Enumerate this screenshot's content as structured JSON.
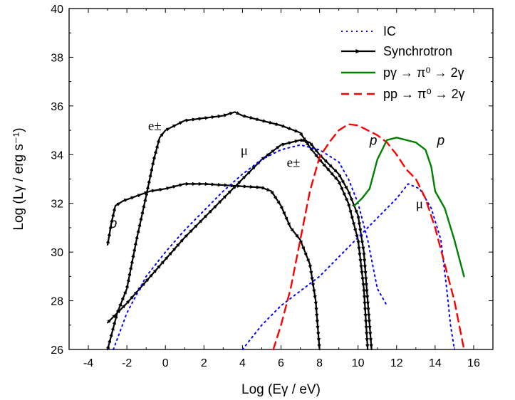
{
  "chart_data": {
    "type": "line",
    "xlabel": "Log (Eγ / eV)",
    "ylabel": "Log (Lγ / erg s⁻¹)",
    "xlim": [
      -5,
      17
    ],
    "ylim": [
      26,
      40
    ],
    "xticks": [
      -4,
      -2,
      0,
      2,
      4,
      6,
      8,
      10,
      12,
      14,
      16
    ],
    "yticks": [
      26,
      28,
      30,
      32,
      34,
      36,
      38,
      40
    ],
    "legend": {
      "placement": "top-right",
      "entries": [
        {
          "label": "IC",
          "color": "#0000ff",
          "style": "dotted"
        },
        {
          "label": "Synchrotron",
          "color": "#000000",
          "style": "solid-arrow"
        },
        {
          "label": "pγ → π⁰ → 2γ",
          "color": "#008000",
          "style": "solid"
        },
        {
          "label": "pp → π⁰ → 2γ",
          "color": "#ff0000",
          "style": "dashed"
        }
      ]
    },
    "annotations": [
      {
        "text": "e±",
        "x": -0.9,
        "y": 35.0
      },
      {
        "text": "μ",
        "x": 3.9,
        "y": 34.0
      },
      {
        "text": "e±",
        "x": 6.3,
        "y": 33.5
      },
      {
        "text": "p",
        "x": -2.9,
        "y": 31.0
      },
      {
        "text": "p",
        "x": 10.6,
        "y": 34.4
      },
      {
        "text": "p",
        "x": 14.1,
        "y": 34.4
      },
      {
        "text": "μ",
        "x": 13.0,
        "y": 31.8
      }
    ],
    "series": [
      {
        "style": "sync",
        "color": "#000000",
        "points": [
          [
            -3.0,
            30.3
          ],
          [
            -2.8,
            31.2
          ],
          [
            -2.6,
            31.9
          ],
          [
            -2.2,
            32.1
          ],
          [
            -1.5,
            32.3
          ],
          [
            -0.8,
            32.5
          ],
          [
            0.0,
            32.6
          ],
          [
            1.0,
            32.8
          ],
          [
            2.0,
            32.8
          ],
          [
            3.0,
            32.75
          ],
          [
            4.0,
            32.7
          ],
          [
            5.0,
            32.65
          ],
          [
            5.5,
            32.5
          ],
          [
            6.0,
            31.9
          ],
          [
            6.5,
            31.0
          ],
          [
            7.0,
            30.5
          ],
          [
            7.5,
            29.5
          ],
          [
            7.8,
            28.0
          ],
          [
            8.0,
            26.0
          ]
        ]
      },
      {
        "style": "sync",
        "color": "#000000",
        "points": [
          [
            -3.0,
            26.0
          ],
          [
            -2.5,
            27.5
          ],
          [
            -2.0,
            28.5
          ],
          [
            -1.5,
            30.5
          ],
          [
            -1.0,
            32.3
          ],
          [
            -0.6,
            33.8
          ],
          [
            -0.3,
            34.7
          ],
          [
            0.0,
            35.0
          ],
          [
            1.0,
            35.4
          ],
          [
            2.0,
            35.5
          ],
          [
            3.0,
            35.6
          ],
          [
            3.6,
            35.75
          ],
          [
            4.0,
            35.6
          ],
          [
            5.0,
            35.4
          ],
          [
            6.0,
            35.2
          ],
          [
            7.0,
            34.9
          ],
          [
            7.5,
            34.3
          ],
          [
            8.0,
            33.8
          ],
          [
            9.0,
            32.9
          ],
          [
            9.5,
            32.0
          ],
          [
            10.0,
            30.5
          ],
          [
            10.3,
            28.5
          ],
          [
            10.5,
            26.0
          ]
        ]
      },
      {
        "style": "sync",
        "color": "#000000",
        "points": [
          [
            -3.0,
            27.1
          ],
          [
            -2.5,
            27.5
          ],
          [
            -2.0,
            27.9
          ],
          [
            -1.0,
            28.8
          ],
          [
            0.0,
            29.7
          ],
          [
            1.0,
            30.6
          ],
          [
            2.0,
            31.4
          ],
          [
            3.0,
            32.2
          ],
          [
            4.0,
            33.0
          ],
          [
            5.0,
            33.8
          ],
          [
            6.0,
            34.4
          ],
          [
            7.0,
            34.6
          ],
          [
            7.5,
            34.5
          ],
          [
            8.0,
            34.0
          ],
          [
            8.5,
            33.6
          ],
          [
            9.0,
            33.2
          ],
          [
            9.5,
            32.5
          ],
          [
            10.0,
            31.5
          ],
          [
            10.3,
            30.0
          ],
          [
            10.5,
            28.0
          ],
          [
            10.7,
            26.0
          ]
        ]
      },
      {
        "style": "ic",
        "color": "#0000ff",
        "points": [
          [
            -2.7,
            26.0
          ],
          [
            -2.0,
            27.5
          ],
          [
            -1.0,
            29.0
          ],
          [
            0.0,
            30.0
          ],
          [
            1.0,
            30.9
          ],
          [
            2.0,
            31.7
          ],
          [
            3.0,
            32.5
          ],
          [
            4.0,
            33.2
          ],
          [
            5.0,
            33.8
          ],
          [
            6.0,
            34.2
          ],
          [
            7.0,
            34.4
          ],
          [
            8.0,
            34.2
          ],
          [
            9.0,
            33.7
          ],
          [
            9.5,
            33.0
          ],
          [
            10.0,
            32.0
          ],
          [
            10.5,
            30.5
          ],
          [
            11.0,
            28.5
          ],
          [
            11.5,
            27.8
          ]
        ]
      },
      {
        "style": "ic",
        "color": "#0000ff",
        "points": [
          [
            4.0,
            26.0
          ],
          [
            5.0,
            27.0
          ],
          [
            6.0,
            27.8
          ],
          [
            7.0,
            28.4
          ],
          [
            8.0,
            29.0
          ],
          [
            9.0,
            29.8
          ],
          [
            10.0,
            30.6
          ],
          [
            11.0,
            31.4
          ],
          [
            12.0,
            32.2
          ],
          [
            12.6,
            32.8
          ],
          [
            13.2,
            32.6
          ],
          [
            13.8,
            31.8
          ],
          [
            14.3,
            30.5
          ],
          [
            14.6,
            28.5
          ],
          [
            14.8,
            27.0
          ],
          [
            15.0,
            26.0
          ]
        ]
      },
      {
        "style": "pp",
        "color": "#ff0000",
        "points": [
          [
            5.6,
            26.0
          ],
          [
            6.0,
            27.0
          ],
          [
            6.5,
            28.5
          ],
          [
            7.0,
            30.5
          ],
          [
            7.5,
            32.5
          ],
          [
            8.0,
            33.9
          ],
          [
            8.5,
            34.5
          ],
          [
            9.0,
            35.0
          ],
          [
            9.5,
            35.25
          ],
          [
            10.0,
            35.2
          ],
          [
            11.0,
            34.8
          ],
          [
            11.5,
            34.5
          ],
          [
            12.0,
            34.0
          ],
          [
            12.5,
            33.4
          ],
          [
            13.0,
            33.0
          ],
          [
            13.5,
            32.2
          ],
          [
            14.0,
            31.0
          ],
          [
            14.5,
            29.5
          ],
          [
            15.0,
            28.0
          ],
          [
            15.5,
            26.0
          ]
        ]
      },
      {
        "style": "pg",
        "color": "#008000",
        "points": [
          [
            9.8,
            31.9
          ],
          [
            10.2,
            32.2
          ],
          [
            10.6,
            32.6
          ],
          [
            11.0,
            33.8
          ],
          [
            11.5,
            34.6
          ],
          [
            12.0,
            34.7
          ],
          [
            12.5,
            34.6
          ],
          [
            13.0,
            34.5
          ],
          [
            13.5,
            34.2
          ],
          [
            13.8,
            33.5
          ],
          [
            14.0,
            32.5
          ],
          [
            14.5,
            31.8
          ],
          [
            15.0,
            30.5
          ],
          [
            15.5,
            29.0
          ]
        ]
      }
    ]
  }
}
